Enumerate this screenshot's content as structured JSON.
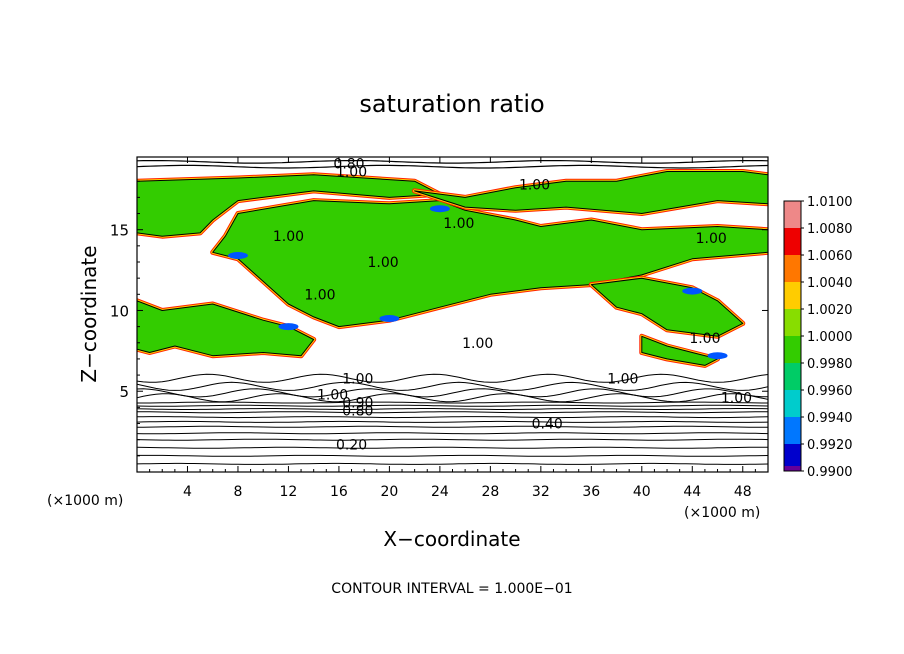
{
  "chart_data": {
    "type": "heatmap",
    "title": "saturation ratio",
    "xlabel": "X−coordinate",
    "ylabel": "Z−coordinate",
    "x_unit_left": "(×1000 m)",
    "x_unit_right": "(×1000 m)",
    "footer": "CONTOUR INTERVAL = 1.000E−01",
    "xlim": [
      0,
      50
    ],
    "ylim": [
      0,
      19.5
    ],
    "x_ticks": [
      4,
      8,
      12,
      16,
      20,
      24,
      28,
      32,
      36,
      40,
      44,
      48
    ],
    "x_tick_labels": [
      "4",
      "8",
      "12",
      "16",
      "20",
      "24",
      "28",
      "32",
      "36",
      "40",
      "44",
      "48"
    ],
    "y_ticks": [
      5,
      10,
      15
    ],
    "y_tick_labels": [
      "5",
      "10",
      "15"
    ],
    "colorbar": {
      "min": 0.99,
      "max": 1.01,
      "labels": [
        "1.0100",
        "1.0080",
        "1.0060",
        "1.0040",
        "1.0020",
        "1.0000",
        "0.9980",
        "0.9960",
        "0.9940",
        "0.9920",
        "0.9900"
      ],
      "colors": [
        "#ee8888",
        "#ee0000",
        "#ff7700",
        "#ffcc00",
        "#88dd00",
        "#33cc00",
        "#00cc66",
        "#00cccc",
        "#0077ff",
        "#0000cc",
        "#660099"
      ]
    },
    "contour_levels": [
      0.2,
      0.4,
      0.8,
      0.9,
      1.0
    ],
    "contour_labels": [
      {
        "x": 16.8,
        "y": 19.1,
        "text": "0.80"
      },
      {
        "x": 17.0,
        "y": 18.6,
        "text": "1.00"
      },
      {
        "x": 31.5,
        "y": 17.8,
        "text": "1.00"
      },
      {
        "x": 12.0,
        "y": 14.6,
        "text": "1.00"
      },
      {
        "x": 25.5,
        "y": 15.4,
        "text": "1.00"
      },
      {
        "x": 19.5,
        "y": 13.0,
        "text": "1.00"
      },
      {
        "x": 45.5,
        "y": 14.5,
        "text": "1.00"
      },
      {
        "x": 14.5,
        "y": 11.0,
        "text": "1.00"
      },
      {
        "x": 27.0,
        "y": 8.0,
        "text": "1.00"
      },
      {
        "x": 45.0,
        "y": 8.3,
        "text": "1.00"
      },
      {
        "x": 17.5,
        "y": 5.8,
        "text": "1.00"
      },
      {
        "x": 15.5,
        "y": 4.8,
        "text": "1.00"
      },
      {
        "x": 38.5,
        "y": 5.8,
        "text": "1.00"
      },
      {
        "x": 47.5,
        "y": 4.6,
        "text": "1.00"
      },
      {
        "x": 17.5,
        "y": 4.3,
        "text": "0.90"
      },
      {
        "x": 17.5,
        "y": 3.8,
        "text": "0.80"
      },
      {
        "x": 32.5,
        "y": 3.0,
        "text": "0.40"
      },
      {
        "x": 17.0,
        "y": 1.7,
        "text": "0.20"
      }
    ],
    "regions_supersaturated": [
      [
        [
          0,
          18.0
        ],
        [
          8,
          18.2
        ],
        [
          14,
          18.4
        ],
        [
          22,
          18.0
        ],
        [
          24,
          17.2
        ],
        [
          20,
          17.0
        ],
        [
          14,
          17.4
        ],
        [
          8,
          16.8
        ],
        [
          6,
          15.6
        ],
        [
          5,
          14.8
        ],
        [
          2,
          14.6
        ],
        [
          0,
          14.8
        ]
      ],
      [
        [
          8,
          16.0
        ],
        [
          14,
          16.8
        ],
        [
          20,
          16.6
        ],
        [
          24,
          16.8
        ],
        [
          26,
          16.2
        ],
        [
          30,
          15.6
        ],
        [
          32,
          15.2
        ],
        [
          36,
          15.6
        ],
        [
          40,
          15.0
        ],
        [
          46,
          15.2
        ],
        [
          50,
          15.0
        ],
        [
          50,
          13.6
        ],
        [
          44,
          13.2
        ],
        [
          40,
          12.2
        ],
        [
          36,
          11.6
        ],
        [
          32,
          11.4
        ],
        [
          28,
          11.0
        ],
        [
          24,
          10.2
        ],
        [
          20,
          9.4
        ],
        [
          16,
          9.0
        ],
        [
          14,
          9.6
        ],
        [
          12,
          10.4
        ],
        [
          10,
          11.8
        ],
        [
          8,
          13.2
        ],
        [
          6,
          13.6
        ],
        [
          7,
          14.6
        ]
      ],
      [
        [
          22,
          17.4
        ],
        [
          26,
          17.0
        ],
        [
          30,
          17.6
        ],
        [
          34,
          18.0
        ],
        [
          38,
          18.0
        ],
        [
          42,
          18.6
        ],
        [
          48,
          18.6
        ],
        [
          50,
          18.4
        ],
        [
          50,
          16.6
        ],
        [
          46,
          16.8
        ],
        [
          40,
          16.0
        ],
        [
          34,
          16.4
        ],
        [
          30,
          16.2
        ],
        [
          26,
          16.4
        ]
      ],
      [
        [
          36,
          11.6
        ],
        [
          40,
          12.0
        ],
        [
          44,
          11.4
        ],
        [
          46,
          10.6
        ],
        [
          48,
          9.2
        ],
        [
          46,
          8.4
        ],
        [
          42,
          8.8
        ],
        [
          40,
          9.8
        ],
        [
          38,
          10.2
        ]
      ],
      [
        [
          0,
          10.6
        ],
        [
          2,
          10.0
        ],
        [
          6,
          10.4
        ],
        [
          10,
          9.4
        ],
        [
          12,
          9.0
        ],
        [
          14,
          8.2
        ],
        [
          13,
          7.2
        ],
        [
          10,
          7.4
        ],
        [
          6,
          7.2
        ],
        [
          3,
          7.8
        ],
        [
          1,
          7.4
        ],
        [
          0,
          7.6
        ]
      ],
      [
        [
          40,
          8.4
        ],
        [
          42,
          7.8
        ],
        [
          44,
          7.4
        ],
        [
          46,
          7.0
        ],
        [
          45,
          6.6
        ],
        [
          42,
          7.0
        ],
        [
          40,
          7.4
        ]
      ]
    ]
  }
}
